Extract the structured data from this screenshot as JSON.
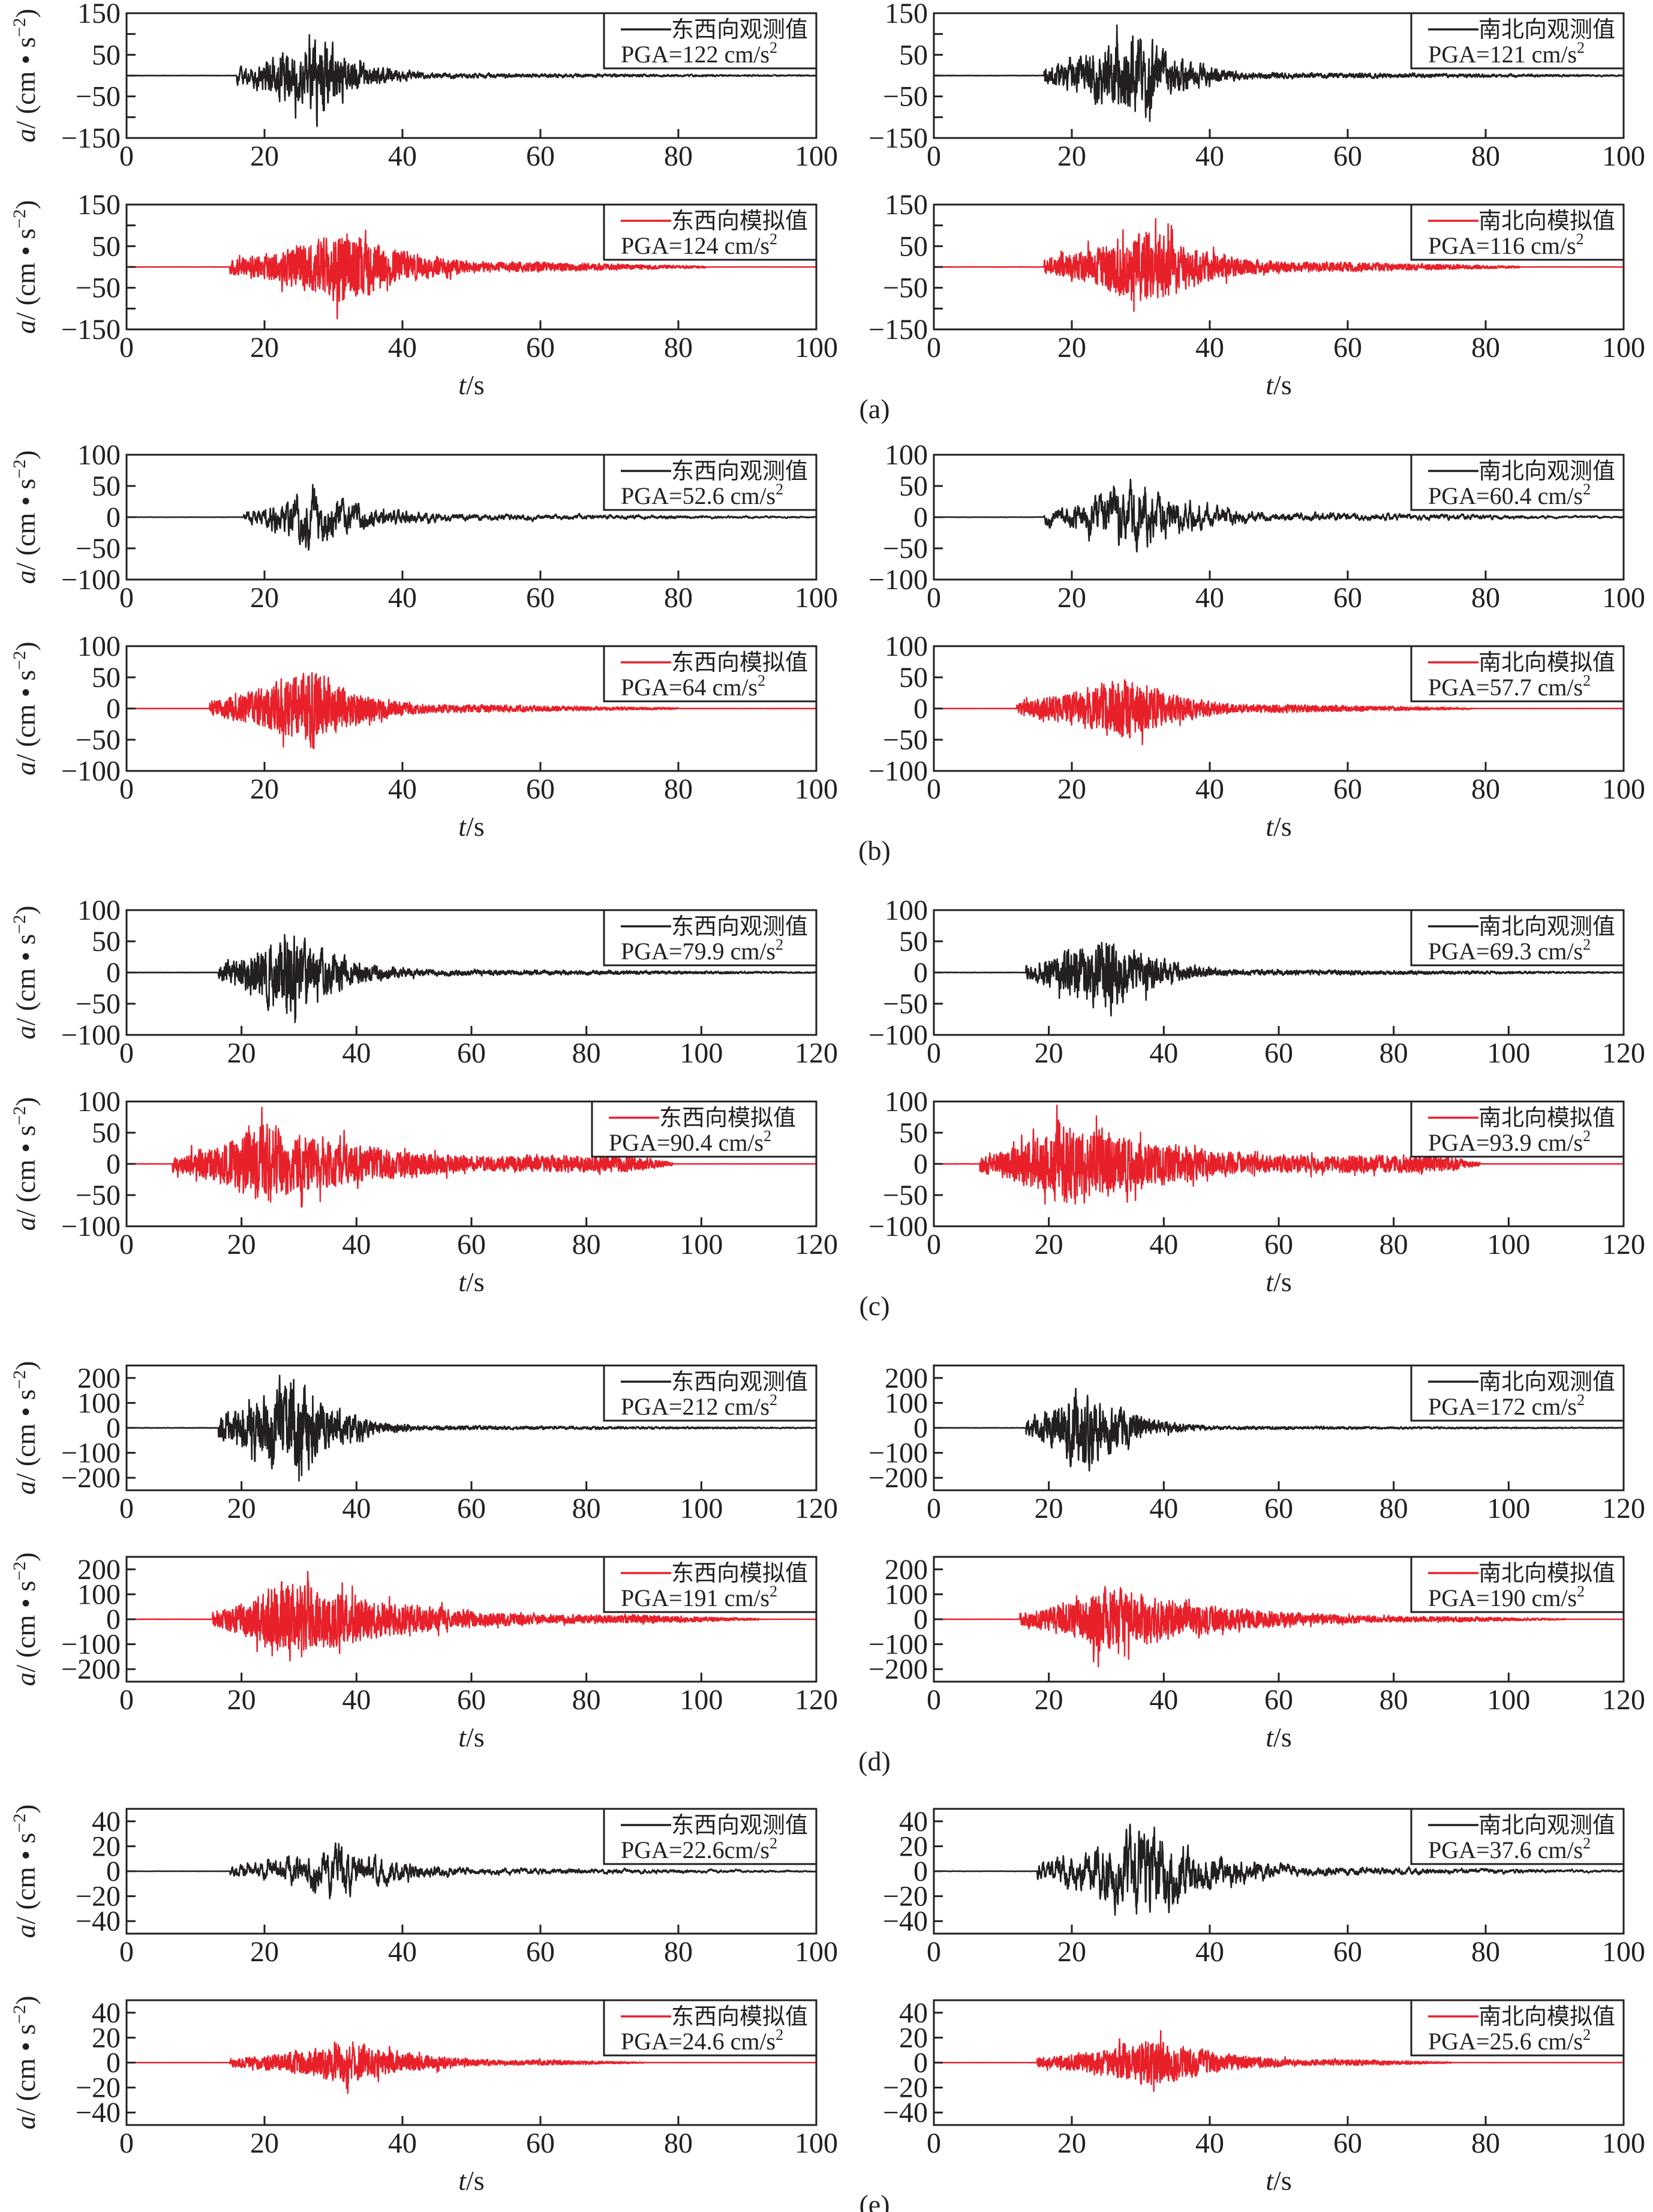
{
  "figure": {
    "colors": {
      "observed": "#231f20",
      "simulated": "#e8202a",
      "axis": "#231f20"
    },
    "y_axis_label": {
      "italic": "a",
      "rest": "/ (cm • s",
      "sup": "−2",
      "close": ")"
    },
    "x_axis_label": {
      "italic": "t",
      "rest": "/s"
    },
    "pga_prefix": "PGA=",
    "pga_unit": "cm/s",
    "pga_unit_sup": "2"
  },
  "chart_data": [
    {
      "group": "(a)",
      "type": "line",
      "xlim": [
        0,
        100
      ],
      "xticks": [
        0,
        20,
        40,
        60,
        80,
        100
      ],
      "ylim": [
        -150,
        150
      ],
      "yticks_labeled": [
        150,
        50,
        -50,
        -150
      ],
      "yticks_minor": [
        100,
        0,
        -100
      ],
      "xlabel": "t/s",
      "ylabel": "a/(cm•s⁻²)",
      "panels": [
        {
          "position": "top-left",
          "legend": "东西向观测值",
          "series": "observed",
          "pga_text": "122",
          "pga": 122,
          "pga_sign": -1,
          "onset": 16,
          "peak_time": 28,
          "decay_end": 46,
          "tail_level": 0.06,
          "end": 100,
          "seed": 11,
          "smooth": 0.55
        },
        {
          "position": "top-right",
          "legend": "南北向观测值",
          "series": "observed",
          "pga_text": "121",
          "pga": 121,
          "pga_sign": 1,
          "onset": 16,
          "peak_time": 30,
          "decay_end": 48,
          "tail_level": 0.07,
          "end": 100,
          "seed": 12,
          "smooth": 0.55
        },
        {
          "position": "bottom-left",
          "legend": "东西向模拟值",
          "series": "simulated",
          "pga_text": "124",
          "pga": 124,
          "pga_sign": -1,
          "onset": 15,
          "peak_time": 32,
          "decay_end": 60,
          "tail_level": 0.12,
          "end": 84,
          "seed": 13,
          "smooth": 0.2
        },
        {
          "position": "bottom-right",
          "legend": "南北向模拟值",
          "series": "simulated",
          "pga_text": "116",
          "pga": 116,
          "pga_sign": 1,
          "onset": 16,
          "peak_time": 31,
          "decay_end": 58,
          "tail_level": 0.12,
          "end": 85,
          "seed": 14,
          "smooth": 0.2
        }
      ]
    },
    {
      "group": "(b)",
      "type": "line",
      "xlim": [
        0,
        100
      ],
      "xticks": [
        0,
        20,
        40,
        60,
        80,
        100
      ],
      "ylim": [
        -100,
        100
      ],
      "yticks_labeled": [
        100,
        50,
        0,
        -50,
        -100
      ],
      "yticks_minor": [],
      "xlabel": "t/s",
      "ylabel": "a/(cm•s⁻²)",
      "panels": [
        {
          "position": "top-left",
          "legend": "东西向观测值",
          "series": "observed",
          "pga_text": "52.6",
          "pga": 52.6,
          "pga_sign": -1,
          "onset": 17,
          "peak_time": 27,
          "decay_end": 55,
          "tail_level": 0.1,
          "end": 100,
          "seed": 21,
          "smooth": 0.75
        },
        {
          "position": "top-right",
          "legend": "南北向观测值",
          "series": "observed",
          "pga_text": "60.4",
          "pga": 60.4,
          "pga_sign": 1,
          "onset": 16,
          "peak_time": 29,
          "decay_end": 55,
          "tail_level": 0.1,
          "end": 100,
          "seed": 22,
          "smooth": 0.75
        },
        {
          "position": "bottom-left",
          "legend": "东西向模拟值",
          "series": "simulated",
          "pga_text": "64",
          "pga": 64,
          "pga_sign": -1,
          "onset": 12,
          "peak_time": 27,
          "decay_end": 50,
          "tail_level": 0.1,
          "end": 80,
          "seed": 23,
          "smooth": 0.2
        },
        {
          "position": "bottom-right",
          "legend": "南北向模拟值",
          "series": "simulated",
          "pga_text": "57.7",
          "pga": 57.7,
          "pga_sign": -1,
          "onset": 12,
          "peak_time": 28,
          "decay_end": 52,
          "tail_level": 0.12,
          "end": 78,
          "seed": 24,
          "smooth": 0.2
        }
      ]
    },
    {
      "group": "(c)",
      "type": "line",
      "xlim": [
        0,
        120
      ],
      "xticks": [
        0,
        20,
        40,
        60,
        80,
        100,
        120
      ],
      "ylim": [
        -100,
        100
      ],
      "yticks_labeled": [
        100,
        50,
        0,
        -50,
        -100
      ],
      "yticks_minor": [],
      "xlabel": "t/s",
      "ylabel": "a/(cm•s⁻²)",
      "panels": [
        {
          "position": "top-left",
          "legend": "东西向观测值",
          "series": "observed",
          "pga_text": "79.9",
          "pga": 79.9,
          "pga_sign": -1,
          "onset": 16,
          "peak_time": 28,
          "decay_end": 55,
          "tail_level": 0.07,
          "end": 120,
          "seed": 31,
          "smooth": 0.45
        },
        {
          "position": "top-right",
          "legend": "南北向观测值",
          "series": "observed",
          "pga_text": "69.3",
          "pga": 69.3,
          "pga_sign": -1,
          "onset": 16,
          "peak_time": 30,
          "decay_end": 55,
          "tail_level": 0.07,
          "end": 120,
          "seed": 32,
          "smooth": 0.45
        },
        {
          "position": "bottom-left",
          "legend": "东西向模拟值",
          "series": "simulated",
          "pga_text": "90.4",
          "pga": 90.4,
          "pga_sign": 1,
          "onset": 8,
          "peak_time": 24,
          "decay_end": 88,
          "tail_level": 0.2,
          "end": 95,
          "seed": 33,
          "smooth": 0.2,
          "box_wide": true
        },
        {
          "position": "bottom-right",
          "legend": "南北向模拟值",
          "series": "simulated",
          "pga_text": "93.9",
          "pga": 93.9,
          "pga_sign": 1,
          "onset": 8,
          "peak_time": 23,
          "decay_end": 88,
          "tail_level": 0.2,
          "end": 95,
          "seed": 34,
          "smooth": 0.2
        }
      ]
    },
    {
      "group": "(d)",
      "type": "line",
      "xlim": [
        0,
        120
      ],
      "xticks": [
        0,
        20,
        40,
        60,
        80,
        100,
        120
      ],
      "ylim": [
        -250,
        250
      ],
      "yticks_labeled": [
        200,
        100,
        0,
        -100,
        -200
      ],
      "yticks_minor": [],
      "xlabel": "t/s",
      "ylabel": "a/(cm•s⁻²)",
      "panels": [
        {
          "position": "top-left",
          "legend": "东西向观测值",
          "series": "observed",
          "pga_text": "212",
          "pga": 212,
          "pga_sign": -1,
          "onset": 16,
          "peak_time": 29,
          "decay_end": 50,
          "tail_level": 0.04,
          "end": 120,
          "seed": 41,
          "smooth": 0.45
        },
        {
          "position": "top-right",
          "legend": "南北向观测值",
          "series": "observed",
          "pga_text": "172",
          "pga": 172,
          "pga_sign": -1,
          "onset": 16,
          "peak_time": 26,
          "decay_end": 48,
          "tail_level": 0.04,
          "end": 120,
          "seed": 42,
          "smooth": 0.45
        },
        {
          "position": "bottom-left",
          "legend": "东西向模拟值",
          "series": "simulated",
          "pga_text": "191",
          "pga": 191,
          "pga_sign": 1,
          "onset": 15,
          "peak_time": 28,
          "decay_end": 90,
          "tail_level": 0.1,
          "end": 110,
          "seed": 43,
          "smooth": 0.2
        },
        {
          "position": "bottom-right",
          "legend": "南北向模拟值",
          "series": "simulated",
          "pga_text": "190",
          "pga": 190,
          "pga_sign": -1,
          "onset": 15,
          "peak_time": 30,
          "decay_end": 90,
          "tail_level": 0.08,
          "end": 110,
          "seed": 44,
          "smooth": 0.2
        }
      ]
    },
    {
      "group": "(e)",
      "type": "line",
      "xlim": [
        0,
        100
      ],
      "xticks": [
        0,
        20,
        40,
        60,
        80,
        100
      ],
      "ylim": [
        -50,
        50
      ],
      "yticks_labeled": [
        40,
        20,
        0,
        -20,
        -40
      ],
      "yticks_minor": [],
      "xlabel": "t/s",
      "ylabel": "a/(cm•s⁻²)",
      "panels": [
        {
          "position": "top-left",
          "legend": "东西向观测值",
          "series": "observed",
          "pga_text": "22.6",
          "pga_nospace": true,
          "pga": 22.6,
          "pga_sign": 1,
          "onset": 15,
          "peak_time": 31,
          "decay_end": 60,
          "tail_level": 0.12,
          "end": 100,
          "seed": 51,
          "smooth": 0.75
        },
        {
          "position": "top-right",
          "legend": "南北向观测值",
          "series": "observed",
          "pga_text": "37.6",
          "pga": 37.6,
          "pga_sign": 1,
          "onset": 15,
          "peak_time": 31,
          "decay_end": 60,
          "tail_level": 0.08,
          "end": 100,
          "seed": 52,
          "smooth": 0.75
        },
        {
          "position": "bottom-left",
          "legend": "东西向模拟值",
          "series": "simulated",
          "pga_text": "24.6",
          "pga": 24.6,
          "pga_sign": -1,
          "onset": 15,
          "peak_time": 33,
          "decay_end": 62,
          "tail_level": 0.12,
          "end": 75,
          "seed": 53,
          "smooth": 0.2
        },
        {
          "position": "bottom-right",
          "legend": "南北向模拟值",
          "series": "simulated",
          "pga_text": "25.6",
          "pga": 25.6,
          "pga_sign": 1,
          "onset": 15,
          "peak_time": 32,
          "decay_end": 62,
          "tail_level": 0.12,
          "end": 75,
          "seed": 54,
          "smooth": 0.2
        }
      ]
    }
  ]
}
